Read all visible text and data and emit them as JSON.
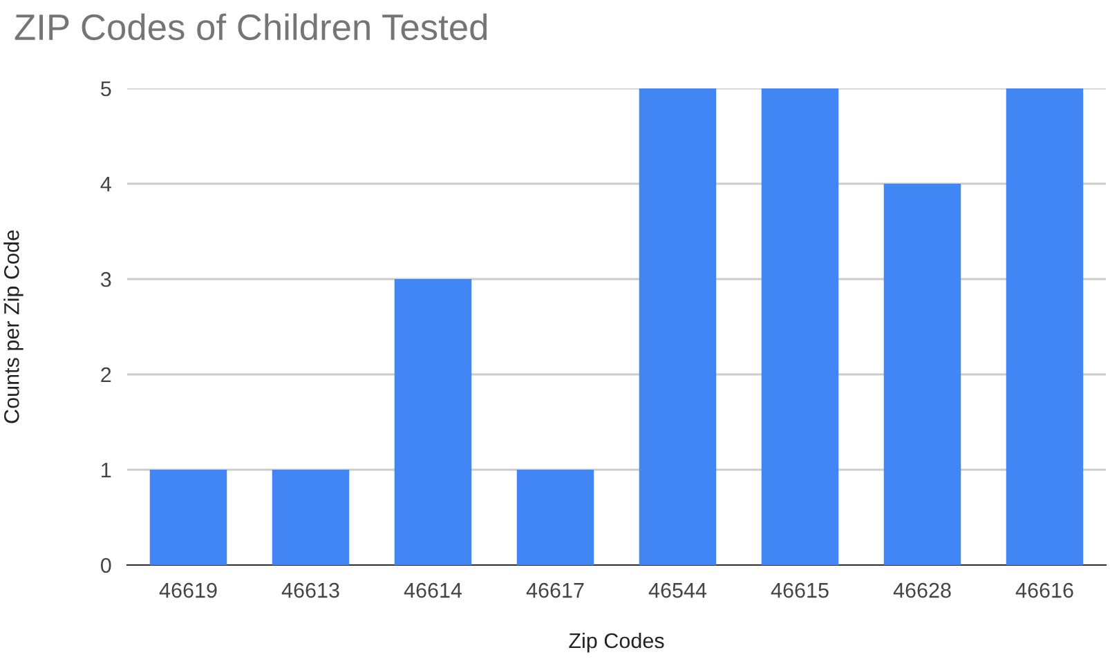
{
  "chart_data": {
    "type": "bar",
    "title": "ZIP Codes of Children Tested",
    "xlabel": "Zip Codes",
    "ylabel": "Counts per Zip Code",
    "categories": [
      "46619",
      "46613",
      "46614",
      "46617",
      "46544",
      "46615",
      "46628",
      "46616"
    ],
    "values": [
      1,
      1,
      3,
      1,
      5,
      5,
      4,
      5
    ],
    "color": "#4285f4",
    "ylim": [
      0,
      5
    ],
    "yticks": [
      0,
      1,
      2,
      3,
      4,
      5
    ],
    "grid": "y",
    "legend": false
  }
}
